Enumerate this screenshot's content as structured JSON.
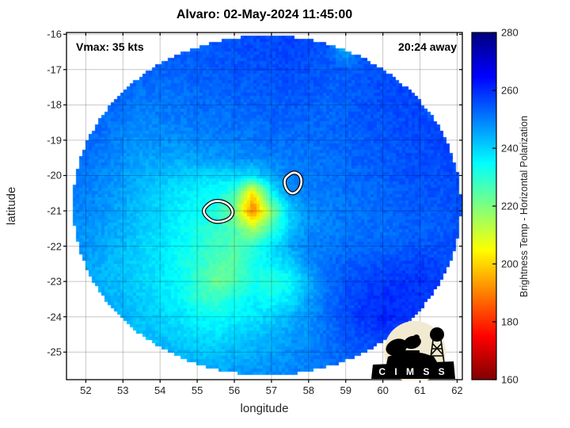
{
  "title": "Alvaro: 02-May-2024 11:45:00",
  "annotations": {
    "vmax": "Vmax: 35 kts",
    "eta": "20:24 away"
  },
  "axes": {
    "xlabel": "longitude",
    "ylabel": "latitude",
    "xticks": [
      52,
      53,
      54,
      55,
      56,
      57,
      58,
      59,
      60,
      61,
      62
    ],
    "yticks": [
      -16,
      -17,
      -18,
      -19,
      -20,
      -21,
      -22,
      -23,
      -24,
      -25
    ]
  },
  "colorbar": {
    "label": "Brightness Temp - Horizontal Polarization",
    "min": 160,
    "max": 280,
    "ticks": [
      160,
      180,
      200,
      220,
      240,
      260,
      280
    ]
  },
  "logo": {
    "label": "C I M S S"
  },
  "colors": {
    "grid_line": "rgba(0,0,0,0.22)",
    "axis_line": "#000000",
    "contour_outer": "#000000",
    "contour_inner": "#ffffff",
    "logo_circle": "#f2ead0"
  },
  "chart_data": {
    "type": "heatmap",
    "title": "Alvaro: 02-May-2024 11:45:00",
    "xlabel": "longitude",
    "ylabel": "latitude",
    "xlim": [
      51.48,
      62.14
    ],
    "ylim": [
      -25.78,
      -15.95
    ],
    "grid_on": true,
    "colormap": "jet_reversed",
    "clim": [
      160,
      280
    ],
    "colorbar_label": "Brightness Temp - Horizontal Polarization",
    "swath": {
      "center_lon": 56.88,
      "center_lat": -20.85,
      "radius_lon": 5.23,
      "radius_lat": 4.81
    },
    "hotspot": {
      "lon": 56.6,
      "lat": -20.78,
      "bt_min": 190
    },
    "grid": {
      "lon_start": 52,
      "lon_step": 0.5,
      "lat_start": -16,
      "lat_step": -0.5,
      "values": [
        [
          258,
          258,
          257,
          257,
          256,
          256,
          255,
          255,
          256,
          256,
          257,
          257,
          257,
          256,
          240,
          255,
          257,
          258,
          258,
          258,
          258
        ],
        [
          258,
          257,
          256,
          255,
          255,
          254,
          254,
          255,
          255,
          256,
          256,
          257,
          256,
          255,
          245,
          256,
          257,
          258,
          258,
          258,
          258
        ],
        [
          257,
          256,
          255,
          254,
          253,
          253,
          254,
          254,
          255,
          255,
          256,
          256,
          255,
          255,
          254,
          255,
          256,
          257,
          258,
          258,
          257
        ],
        [
          256,
          255,
          253,
          252,
          252,
          252,
          253,
          253,
          254,
          254,
          255,
          255,
          255,
          254,
          254,
          255,
          256,
          257,
          257,
          250,
          257
        ],
        [
          255,
          253,
          252,
          250,
          251,
          251,
          252,
          252,
          253,
          253,
          254,
          254,
          254,
          253,
          254,
          255,
          256,
          256,
          257,
          240,
          258
        ],
        [
          254,
          252,
          250,
          249,
          250,
          250,
          251,
          251,
          252,
          252,
          253,
          253,
          253,
          253,
          254,
          255,
          255,
          256,
          257,
          257,
          258
        ],
        [
          253,
          251,
          249,
          248,
          248,
          248,
          249,
          250,
          250,
          251,
          252,
          252,
          252,
          253,
          253,
          254,
          255,
          256,
          256,
          257,
          257
        ],
        [
          252,
          250,
          248,
          246,
          246,
          245,
          246,
          247,
          248,
          249,
          250,
          251,
          251,
          252,
          253,
          254,
          254,
          255,
          256,
          256,
          257
        ],
        [
          251,
          249,
          247,
          244,
          243,
          241,
          240,
          239,
          240,
          238,
          245,
          250,
          251,
          252,
          252,
          253,
          254,
          255,
          255,
          256,
          256
        ],
        [
          250,
          248,
          246,
          243,
          240,
          238,
          236,
          234,
          228,
          202,
          235,
          248,
          250,
          251,
          252,
          252,
          253,
          254,
          255,
          255,
          256
        ],
        [
          249,
          247,
          245,
          242,
          240,
          237,
          234,
          232,
          220,
          188,
          218,
          240,
          248,
          250,
          251,
          252,
          253,
          254,
          254,
          255,
          255
        ],
        [
          248,
          246,
          244,
          241,
          239,
          236,
          232,
          230,
          226,
          215,
          228,
          242,
          248,
          250,
          251,
          252,
          252,
          253,
          254,
          254,
          255
        ],
        [
          247,
          245,
          243,
          240,
          238,
          235,
          232,
          228,
          226,
          230,
          238,
          245,
          250,
          251,
          252,
          253,
          253,
          254,
          255,
          255,
          256
        ],
        [
          246,
          244,
          242,
          240,
          238,
          234,
          230,
          226,
          224,
          232,
          236,
          240,
          248,
          252,
          254,
          255,
          256,
          257,
          258,
          257,
          256
        ],
        [
          245,
          244,
          242,
          240,
          238,
          235,
          230,
          222,
          226,
          232,
          230,
          234,
          244,
          252,
          255,
          257,
          258,
          259,
          259,
          258,
          257
        ],
        [
          245,
          244,
          243,
          241,
          239,
          236,
          230,
          228,
          232,
          236,
          234,
          238,
          246,
          252,
          256,
          258,
          260,
          260,
          259,
          258,
          257
        ],
        [
          246,
          245,
          244,
          242,
          240,
          238,
          236,
          234,
          236,
          238,
          240,
          244,
          248,
          252,
          256,
          259,
          261,
          260,
          258,
          257,
          256
        ],
        [
          247,
          246,
          245,
          243,
          242,
          240,
          239,
          238,
          240,
          242,
          244,
          246,
          248,
          252,
          255,
          257,
          258,
          257,
          256,
          255,
          255
        ],
        [
          248,
          247,
          246,
          245,
          244,
          243,
          242,
          242,
          243,
          244,
          246,
          248,
          250,
          252,
          254,
          255,
          255,
          254,
          253,
          253,
          252
        ],
        [
          249,
          248,
          248,
          247,
          246,
          245,
          245,
          245,
          246,
          247,
          248,
          249,
          250,
          251,
          252,
          253,
          253,
          252,
          252,
          251,
          251
        ]
      ]
    },
    "contours": [
      {
        "name": "center-fix-contour-west",
        "points": [
          [
            55.22,
            -20.88
          ],
          [
            55.42,
            -20.72
          ],
          [
            55.66,
            -20.72
          ],
          [
            55.85,
            -20.82
          ],
          [
            55.97,
            -21.0
          ],
          [
            55.92,
            -21.18
          ],
          [
            55.72,
            -21.3
          ],
          [
            55.45,
            -21.32
          ],
          [
            55.25,
            -21.18
          ],
          [
            55.16,
            -21.02
          ]
        ]
      },
      {
        "name": "center-fix-contour-east",
        "points": [
          [
            57.42,
            -20.02
          ],
          [
            57.58,
            -19.9
          ],
          [
            57.74,
            -19.95
          ],
          [
            57.82,
            -20.12
          ],
          [
            57.78,
            -20.35
          ],
          [
            57.62,
            -20.52
          ],
          [
            57.46,
            -20.48
          ],
          [
            57.36,
            -20.3
          ],
          [
            57.35,
            -20.12
          ]
        ]
      }
    ]
  }
}
